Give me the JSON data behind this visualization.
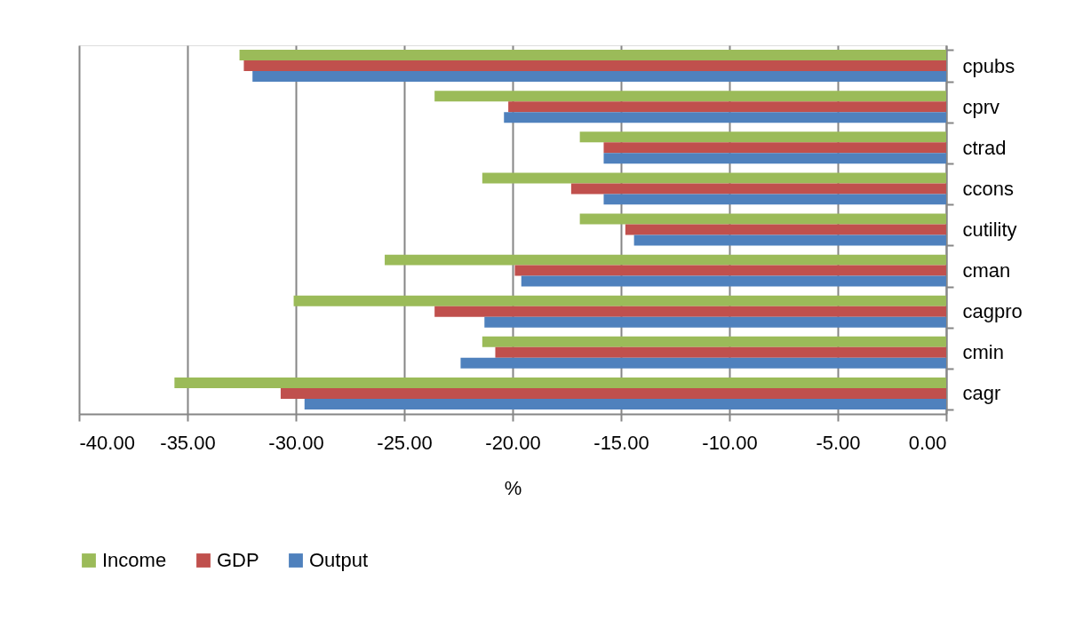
{
  "chart_data": {
    "type": "bar",
    "orientation": "horizontal",
    "xlabel": "%",
    "categories": [
      "cpubs",
      "cprv",
      "ctrad",
      "ccons",
      "cutility",
      "cman",
      "cagpro",
      "cmin",
      "cagr"
    ],
    "series": [
      {
        "name": "Income",
        "color": "#9bbb59",
        "values": [
          -32.6,
          -23.6,
          -16.9,
          -21.4,
          -16.9,
          -25.9,
          -30.1,
          -21.4,
          -35.6
        ]
      },
      {
        "name": "GDP",
        "color": "#c0504d",
        "values": [
          -32.4,
          -20.2,
          -15.8,
          -17.3,
          -14.8,
          -19.9,
          -23.6,
          -20.8,
          -30.7
        ]
      },
      {
        "name": "Output",
        "color": "#4f81bd",
        "values": [
          -32.0,
          -20.4,
          -15.8,
          -15.8,
          -14.4,
          -19.6,
          -21.3,
          -22.4,
          -29.6
        ]
      }
    ],
    "xlim": [
      -40,
      0
    ],
    "xticks": [
      {
        "value": -40,
        "label": "-40.00"
      },
      {
        "value": -35,
        "label": "-35.00"
      },
      {
        "value": -30,
        "label": "-30.00"
      },
      {
        "value": -25,
        "label": "-25.00"
      },
      {
        "value": -20,
        "label": "-20.00"
      },
      {
        "value": -15,
        "label": "-15.00"
      },
      {
        "value": -10,
        "label": "-10.00"
      },
      {
        "value": -5,
        "label": "-5.00"
      },
      {
        "value": 0,
        "label": "0.00"
      }
    ],
    "grid": "x",
    "legend": "bottom"
  }
}
